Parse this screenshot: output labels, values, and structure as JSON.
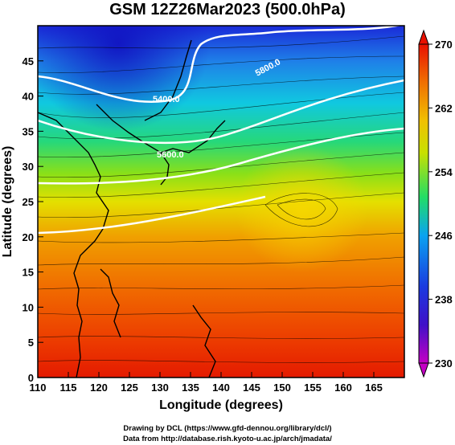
{
  "title": "GSM 12Z26Mar2023 (500.0hPa)",
  "x_axis": {
    "label": "Longitude (degrees)",
    "ticks": [
      "110",
      "115",
      "120",
      "125",
      "130",
      "135",
      "140",
      "145",
      "150",
      "155",
      "160",
      "165"
    ],
    "range": [
      110,
      170
    ]
  },
  "y_axis": {
    "label": "Latitude (degrees)",
    "ticks": [
      "0",
      "5",
      "10",
      "15",
      "20",
      "25",
      "30",
      "35",
      "40",
      "45"
    ],
    "range": [
      0,
      50
    ]
  },
  "colorbar": {
    "ticks": [
      "230",
      "238",
      "246",
      "254",
      "262",
      "270"
    ],
    "range": [
      230,
      270
    ],
    "colors": [
      "#c400c4",
      "#2a1fd0",
      "#0aa3f0",
      "#22dd66",
      "#e8e800",
      "#f08a00",
      "#e81000"
    ]
  },
  "contours": [
    {
      "label": "5400.0"
    },
    {
      "label": "5600.0"
    },
    {
      "label": "5800.0"
    }
  ],
  "footer": {
    "line1": "Drawing by DCL (https://www.gfd-dennou.org/library/dcl/)",
    "line2": "Data from http://database.rish.kyoto-u.ac.jp/arch/jmadata/"
  }
}
